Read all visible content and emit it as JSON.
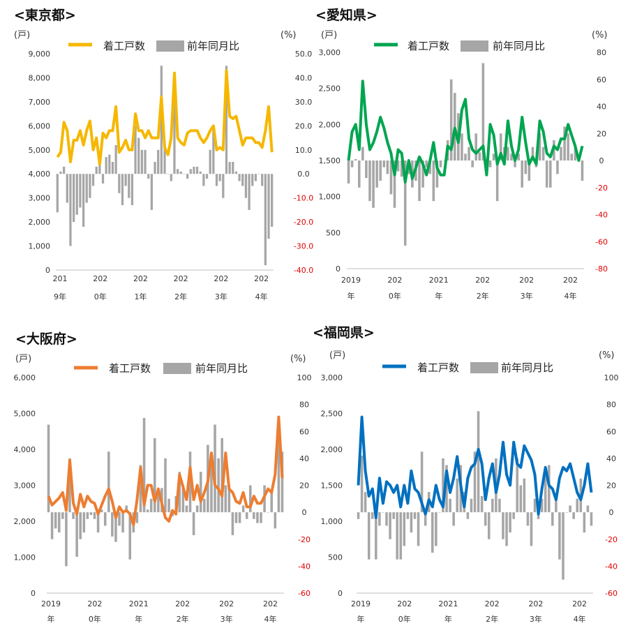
{
  "chart_data": [
    {
      "type": "bar+line",
      "title": "<東京都>",
      "line_color": "#f5b700",
      "bar_color": "#a6a6a6",
      "left_unit": "(戸)",
      "right_unit": "(%)",
      "left_ticks": [
        "9,000",
        "8,000",
        "7,000",
        "6,000",
        "5,000",
        "4,000",
        "3,000",
        "2,000",
        "1,000",
        "0"
      ],
      "right_ticks": [
        "50.0",
        "40.0",
        "30.0",
        "20.0",
        "10.0",
        "0.0",
        "-10.0",
        "-20.0",
        "-30.0",
        "-40.0"
      ],
      "ylim_left": [
        0,
        9000
      ],
      "ylim_right": [
        -40,
        50
      ],
      "x_ticks": [
        {
          "l1": "201",
          "l2": "9年"
        },
        {
          "l1": "202",
          "l2": "0年"
        },
        {
          "l1": "202",
          "l2": "1年"
        },
        {
          "l1": "202",
          "l2": "2年"
        },
        {
          "l1": "202",
          "l2": "3年"
        },
        {
          "l1": "202",
          "l2": "4年"
        }
      ],
      "legend": {
        "line": "着工戸数",
        "bar": "前年同月比"
      },
      "series": [
        {
          "name": "着工戸数",
          "kind": "line",
          "axis": "left",
          "values": [
            4700,
            4900,
            6150,
            5800,
            4500,
            5400,
            5400,
            5800,
            5200,
            5800,
            6200,
            5000,
            5500,
            4400,
            5700,
            5500,
            5800,
            5800,
            6800,
            4900,
            5100,
            5400,
            5000,
            5000,
            6500,
            5800,
            5800,
            5500,
            5800,
            5500,
            5500,
            5500,
            7200,
            5100,
            4800,
            5500,
            8200,
            5500,
            5300,
            5200,
            5700,
            5800,
            5800,
            5800,
            5500,
            5300,
            5500,
            5800,
            6000,
            5000,
            5100,
            5000,
            8300,
            6400,
            6300,
            6400,
            5800,
            5200,
            5500,
            5500,
            5500,
            5300,
            5300,
            5100,
            5800,
            6800,
            4900
          ]
        },
        {
          "name": "前年同月比",
          "kind": "bar",
          "axis": "right",
          "values": [
            -16,
            1,
            3,
            -12,
            -30,
            -20,
            -17,
            -14,
            -22,
            -12,
            -10,
            -5,
            3,
            6,
            -4,
            7,
            8,
            5,
            12,
            -8,
            -13,
            -5,
            -10,
            -13,
            20,
            15,
            10,
            10,
            -2,
            -15,
            5,
            10,
            45,
            12,
            0,
            -3,
            40,
            2,
            1,
            0,
            -2,
            2,
            3,
            3,
            1,
            -5,
            -2,
            10,
            20,
            -5,
            -3,
            -10,
            45,
            5,
            5,
            1,
            -3,
            -5,
            -10,
            -15,
            -5,
            -3,
            0,
            -5,
            -38,
            -27,
            -22
          ]
        }
      ]
    },
    {
      "type": "bar+line",
      "title": "<愛知県>",
      "line_color": "#00a550",
      "bar_color": "#a6a6a6",
      "left_unit": "(戸)",
      "right_unit": "(%)",
      "left_ticks": [
        "3,000",
        "2,500",
        "2,000",
        "1,500",
        "1,000",
        "500",
        "0"
      ],
      "right_ticks": [
        "80",
        "60",
        "40",
        "20",
        "0",
        "-20",
        "-40",
        "-60",
        "-80"
      ],
      "ylim_left": [
        0,
        3000
      ],
      "ylim_right": [
        -80,
        80
      ],
      "x_ticks": [
        {
          "l1": "2019",
          "l2": "年"
        },
        {
          "l1": "202",
          "l2": "0年"
        },
        {
          "l1": "2021",
          "l2": "年"
        },
        {
          "l1": "202",
          "l2": "2年"
        },
        {
          "l1": "202",
          "l2": "3年"
        },
        {
          "l1": "202",
          "l2": "4年"
        }
      ],
      "legend": {
        "line": "着工戸数",
        "bar": "前年同月比"
      },
      "series": [
        {
          "name": "着工戸数",
          "kind": "line",
          "axis": "left",
          "values": [
            1500,
            1900,
            2000,
            1650,
            2600,
            2000,
            1650,
            1750,
            1900,
            2100,
            1950,
            1750,
            1600,
            1300,
            1650,
            1600,
            1200,
            1500,
            1250,
            1400,
            1550,
            1450,
            1300,
            1500,
            1750,
            1400,
            1300,
            1300,
            1700,
            1650,
            1950,
            1750,
            2200,
            2350,
            1800,
            1650,
            1600,
            1650,
            1700,
            1300,
            2000,
            1850,
            1450,
            1600,
            1450,
            2050,
            1700,
            1500,
            1650,
            2100,
            1750,
            1450,
            1550,
            1450,
            2050,
            1900,
            1600,
            1550,
            1700,
            1650,
            1800,
            1800,
            2000,
            1850,
            1700,
            1500,
            1700
          ]
        },
        {
          "name": "前年同月比",
          "kind": "bar",
          "axis": "right",
          "values": [
            -17,
            -5,
            1,
            -20,
            10,
            -13,
            -30,
            -35,
            -20,
            -15,
            -5,
            -10,
            -25,
            -35,
            -8,
            -12,
            -63,
            -10,
            -20,
            -15,
            -30,
            -20,
            -5,
            -10,
            -30,
            -20,
            -5,
            0,
            15,
            60,
            50,
            35,
            20,
            5,
            10,
            -5,
            20,
            6,
            72,
            -5,
            -5,
            5,
            -30,
            20,
            10,
            10,
            5,
            -5,
            5,
            -20,
            -10,
            -15,
            10,
            -5,
            20,
            10,
            -20,
            -20,
            15,
            -10,
            10,
            25,
            20,
            5,
            10,
            0,
            -15
          ]
        }
      ]
    },
    {
      "type": "bar+line",
      "title": "<大阪府>",
      "line_color": "#ed7d31",
      "bar_color": "#a6a6a6",
      "left_unit": "(戸)",
      "right_unit": "(%)",
      "left_ticks": [
        "6,000",
        "5,000",
        "4,000",
        "3,000",
        "2,000",
        "1,000",
        "0"
      ],
      "right_ticks": [
        "100",
        "80",
        "60",
        "40",
        "20",
        "0",
        "-20",
        "-40",
        "-60"
      ],
      "ylim_left": [
        0,
        6000
      ],
      "ylim_right": [
        -60,
        100
      ],
      "x_ticks": [
        {
          "l1": "2019",
          "l2": "年"
        },
        {
          "l1": "202",
          "l2": "0年"
        },
        {
          "l1": "2021",
          "l2": "年"
        },
        {
          "l1": "202",
          "l2": "2年"
        },
        {
          "l1": "202",
          "l2": "3年"
        },
        {
          "l1": "202",
          "l2": "4年"
        }
      ],
      "legend": {
        "line": "着工戸数",
        "bar": "前年同月比"
      },
      "series": [
        {
          "name": "着工戸数",
          "kind": "line",
          "axis": "left",
          "values": [
            2700,
            2450,
            2550,
            2650,
            2800,
            2300,
            3700,
            2500,
            2200,
            2750,
            2400,
            2700,
            2550,
            2500,
            2200,
            2450,
            2700,
            2900,
            2550,
            2100,
            2400,
            2250,
            2300,
            2200,
            1900,
            2600,
            3500,
            2450,
            3000,
            3000,
            2550,
            2900,
            2500,
            2100,
            2000,
            2300,
            2200,
            3300,
            2950,
            2600,
            3500,
            2600,
            3000,
            2550,
            2800,
            3100,
            3900,
            3000,
            2900,
            2700,
            3900,
            2900,
            2800,
            2550,
            2500,
            2800,
            2400,
            2400,
            2700,
            2500,
            2500,
            2700,
            2900,
            2800,
            3300,
            4900,
            3200
          ]
        },
        {
          "name": "前年同月比",
          "kind": "bar",
          "axis": "right",
          "values": [
            65,
            -20,
            -12,
            -15,
            -5,
            -40,
            40,
            -5,
            -33,
            -20,
            -15,
            -5,
            -2,
            -5,
            -15,
            2,
            -10,
            45,
            -18,
            -22,
            -10,
            -15,
            5,
            -35,
            -15,
            -8,
            35,
            70,
            2,
            10,
            55,
            15,
            18,
            40,
            10,
            -3,
            12,
            30,
            20,
            5,
            45,
            -17,
            5,
            30,
            10,
            50,
            40,
            65,
            40,
            55,
            20,
            20,
            -17,
            -8,
            -8,
            5,
            -5,
            20,
            -5,
            -8,
            -8,
            20,
            0,
            15,
            -12,
            60,
            45
          ]
        }
      ]
    },
    {
      "type": "bar+line",
      "title": "<福岡県>",
      "line_color": "#0070c0",
      "bar_color": "#a6a6a6",
      "left_unit": "(戸)",
      "right_unit": "(%)",
      "left_ticks": [
        "3,000",
        "2,500",
        "2,000",
        "1,500",
        "1,000",
        "500",
        "0"
      ],
      "right_ticks": [
        "100",
        "80",
        "60",
        "40",
        "20",
        "0",
        "-20",
        "-40",
        "-60"
      ],
      "ylim_left": [
        0,
        3000
      ],
      "ylim_right": [
        -60,
        100
      ],
      "x_ticks": [
        {
          "l1": "2019",
          "l2": "年"
        },
        {
          "l1": "202",
          "l2": "0年"
        },
        {
          "l1": "2021",
          "l2": "年"
        },
        {
          "l1": "202",
          "l2": "2年"
        },
        {
          "l1": "202",
          "l2": "3年"
        },
        {
          "l1": "202",
          "l2": "4年"
        }
      ],
      "legend": {
        "line": "着工戸数",
        "bar": "前年同月比"
      },
      "series": [
        {
          "name": "着工戸数",
          "kind": "line",
          "axis": "left",
          "values": [
            1500,
            2450,
            1700,
            1350,
            1450,
            1050,
            1600,
            1250,
            1550,
            1500,
            1400,
            1500,
            1200,
            1500,
            1250,
            1700,
            1450,
            1400,
            1250,
            1100,
            1300,
            1200,
            1500,
            1300,
            1200,
            1700,
            1400,
            1600,
            1900,
            1500,
            1200,
            1600,
            1750,
            1800,
            2000,
            1800,
            1300,
            1600,
            1800,
            1400,
            1650,
            2100,
            1650,
            1500,
            2100,
            1800,
            1750,
            2050,
            1950,
            1850,
            1650,
            1100,
            1450,
            1750,
            1500,
            1450,
            1300,
            1600,
            1750,
            1700,
            1800,
            1600,
            1400,
            1300,
            1500,
            1800,
            1400
          ]
        },
        {
          "name": "前年同月比",
          "kind": "bar",
          "axis": "right",
          "values": [
            -5,
            42,
            15,
            -35,
            -5,
            -35,
            -10,
            0,
            -10,
            -20,
            -5,
            -35,
            -35,
            -25,
            -5,
            -15,
            -5,
            -25,
            45,
            -10,
            15,
            -30,
            -25,
            0,
            40,
            35,
            10,
            -10,
            25,
            35,
            15,
            -5,
            10,
            45,
            75,
            12,
            -10,
            -20,
            10,
            40,
            10,
            -20,
            -25,
            -15,
            -5,
            40,
            20,
            25,
            -10,
            -25,
            10,
            -5,
            10,
            30,
            35,
            -10,
            10,
            -35,
            -50,
            0,
            5,
            -5,
            10,
            25,
            -15,
            5,
            -10
          ]
        }
      ]
    }
  ]
}
